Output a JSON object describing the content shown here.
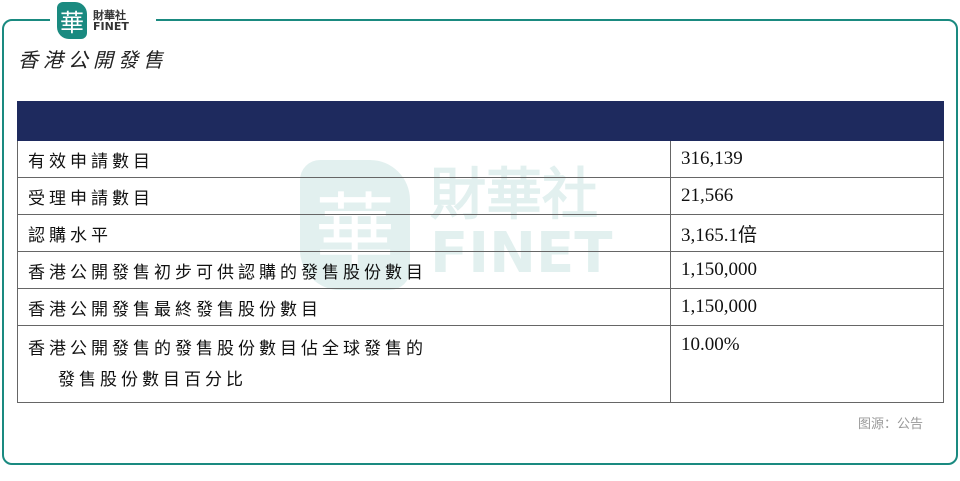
{
  "logo": {
    "mark": "華",
    "cn": "財華社",
    "en": "FINET"
  },
  "title": "香港公開發售",
  "table": {
    "rows": [
      {
        "label": "有效申請數目",
        "value": "316,139"
      },
      {
        "label": "受理申請數目",
        "value": "21,566"
      },
      {
        "label": "認購水平",
        "value": "3,165.1倍"
      },
      {
        "label": "香港公開發售初步可供認購的發售股份數目",
        "value": "1,150,000"
      },
      {
        "label": "香港公開發售最終發售股份數目",
        "value": "1,150,000"
      },
      {
        "label": "香港公開發售的發售股份數目佔全球發售的",
        "label2": "發售股份數目百分比",
        "value": "10.00%"
      }
    ]
  },
  "source": "图源：公告",
  "colors": {
    "brand": "#1a8a80",
    "header": "#1e2a5e"
  }
}
